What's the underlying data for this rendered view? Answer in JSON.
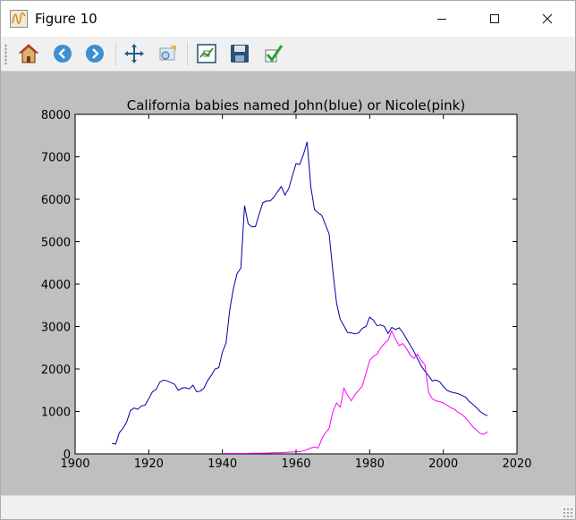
{
  "window": {
    "title": "Figure 10",
    "icon": "matplotlib-figure-icon",
    "controls": [
      {
        "name": "minimize",
        "icon": "minimize-icon"
      },
      {
        "name": "maximize",
        "icon": "maximize-icon"
      },
      {
        "name": "close",
        "icon": "close-icon"
      }
    ]
  },
  "toolbar": {
    "buttons": [
      {
        "name": "home",
        "icon": "home-icon"
      },
      {
        "name": "back",
        "icon": "back-arrow-icon"
      },
      {
        "name": "forward",
        "icon": "forward-arrow-icon"
      },
      {
        "name": "pan",
        "icon": "pan-move-icon"
      },
      {
        "name": "zoom",
        "icon": "zoom-rectangle-icon"
      },
      {
        "name": "subplots",
        "icon": "configure-subplots-icon"
      },
      {
        "name": "save",
        "icon": "save-floppy-icon"
      },
      {
        "name": "edit",
        "icon": "edit-checkmark-icon"
      }
    ]
  },
  "colors": {
    "figure_background": "#bfbfbf",
    "axes_background": "#ffffff",
    "john_line": "#0000aa",
    "nicole_line": "#ff00ff"
  },
  "chart_data": {
    "type": "line",
    "title": "California babies named John(blue) or Nicole(pink)",
    "xlabel": "",
    "ylabel": "",
    "xlim": [
      1900,
      2020
    ],
    "ylim": [
      0,
      8000
    ],
    "xticks": [
      "1900",
      "1920",
      "1940",
      "1960",
      "1980",
      "2000",
      "2020"
    ],
    "yticks": [
      "0",
      "1000",
      "2000",
      "3000",
      "4000",
      "5000",
      "6000",
      "7000",
      "8000"
    ],
    "grid": false,
    "series": [
      {
        "color": "#0000aa",
        "x": [
          1910,
          1911,
          1912,
          1913,
          1914,
          1915,
          1916,
          1917,
          1918,
          1919,
          1920,
          1921,
          1922,
          1923,
          1924,
          1925,
          1926,
          1927,
          1928,
          1929,
          1930,
          1931,
          1932,
          1933,
          1934,
          1935,
          1936,
          1937,
          1938,
          1939,
          1940,
          1941,
          1942,
          1943,
          1944,
          1945,
          1946,
          1947,
          1948,
          1949,
          1950,
          1951,
          1952,
          1953,
          1954,
          1955,
          1956,
          1957,
          1958,
          1959,
          1960,
          1961,
          1962,
          1963,
          1964,
          1965,
          1966,
          1967,
          1968,
          1969,
          1970,
          1971,
          1972,
          1973,
          1974,
          1975,
          1976,
          1977,
          1978,
          1979,
          1980,
          1981,
          1982,
          1983,
          1984,
          1985,
          1986,
          1987,
          1988,
          1989,
          1990,
          1991,
          1992,
          1993,
          1994,
          1995,
          1996,
          1997,
          1998,
          1999,
          2000,
          2001,
          2002,
          2003,
          2004,
          2005,
          2006,
          2007,
          2008,
          2009,
          2010,
          2011,
          2012
        ],
        "y": [
          250,
          230,
          500,
          600,
          750,
          1020,
          1080,
          1050,
          1130,
          1150,
          1300,
          1460,
          1520,
          1690,
          1740,
          1720,
          1680,
          1640,
          1500,
          1550,
          1560,
          1530,
          1620,
          1460,
          1480,
          1550,
          1730,
          1850,
          2000,
          2030,
          2400,
          2620,
          3400,
          3900,
          4250,
          4380,
          5850,
          5420,
          5350,
          5360,
          5650,
          5920,
          5960,
          5960,
          6050,
          6180,
          6300,
          6100,
          6250,
          6550,
          6840,
          6820,
          7050,
          7350,
          6300,
          5760,
          5680,
          5620,
          5400,
          5180,
          4300,
          3550,
          3170,
          3020,
          2860,
          2850,
          2830,
          2850,
          2960,
          3000,
          3220,
          3150,
          3020,
          3040,
          3000,
          2840,
          2980,
          2930,
          2970,
          2860,
          2710,
          2560,
          2420,
          2240,
          2070,
          1950,
          1840,
          1720,
          1740,
          1700,
          1590,
          1500,
          1460,
          1440,
          1420,
          1380,
          1340,
          1240,
          1170,
          1090,
          1000,
          940,
          900
        ]
      },
      {
        "color": "#ff00ff",
        "x": [
          1940,
          1942,
          1944,
          1946,
          1948,
          1950,
          1952,
          1954,
          1956,
          1958,
          1960,
          1961,
          1962,
          1963,
          1964,
          1965,
          1966,
          1967,
          1968,
          1969,
          1970,
          1971,
          1972,
          1973,
          1974,
          1975,
          1976,
          1977,
          1978,
          1979,
          1980,
          1981,
          1982,
          1983,
          1984,
          1985,
          1986,
          1987,
          1988,
          1989,
          1990,
          1991,
          1992,
          1993,
          1994,
          1995,
          1996,
          1997,
          1998,
          1999,
          2000,
          2001,
          2002,
          2003,
          2004,
          2005,
          2006,
          2007,
          2008,
          2009,
          2010,
          2011,
          2012
        ],
        "y": [
          10,
          10,
          10,
          10,
          15,
          15,
          20,
          25,
          30,
          40,
          50,
          55,
          70,
          100,
          140,
          160,
          140,
          350,
          500,
          600,
          1000,
          1200,
          1100,
          1550,
          1380,
          1250,
          1400,
          1500,
          1600,
          1900,
          2200,
          2300,
          2350,
          2500,
          2600,
          2680,
          2900,
          2700,
          2550,
          2600,
          2480,
          2330,
          2250,
          2350,
          2200,
          2100,
          1450,
          1300,
          1250,
          1230,
          1200,
          1150,
          1090,
          1050,
          980,
          930,
          850,
          750,
          640,
          560,
          480,
          460,
          520
        ]
      }
    ]
  }
}
